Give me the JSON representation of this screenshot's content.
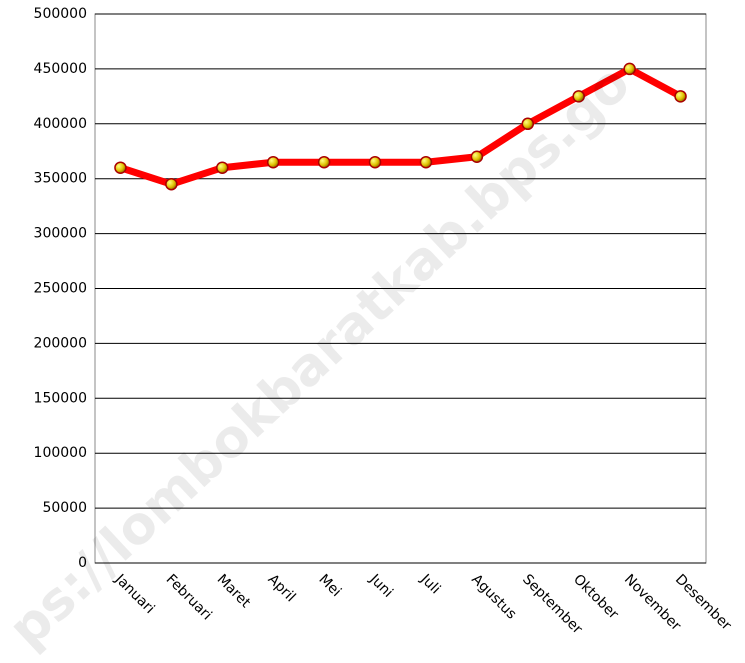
{
  "chart_data": {
    "type": "line",
    "categories": [
      "Januari",
      "Februari",
      "Maret",
      "April",
      "Mei",
      "Juni",
      "Juli",
      "Agustus",
      "September",
      "Oktober",
      "November",
      "Desember"
    ],
    "series": [
      {
        "name": null,
        "color": "#ff0000",
        "values": [
          360000,
          345000,
          360000,
          365000,
          365000,
          365000,
          365000,
          370000,
          400000,
          425000,
          450000,
          425000
        ]
      }
    ],
    "ylim": [
      0,
      500000
    ],
    "yticks": [
      0,
      50000,
      100000,
      150000,
      200000,
      250000,
      300000,
      350000,
      400000,
      450000,
      500000
    ],
    "grid": true,
    "watermark": "ps://lombokbaratkab.bps.go"
  }
}
